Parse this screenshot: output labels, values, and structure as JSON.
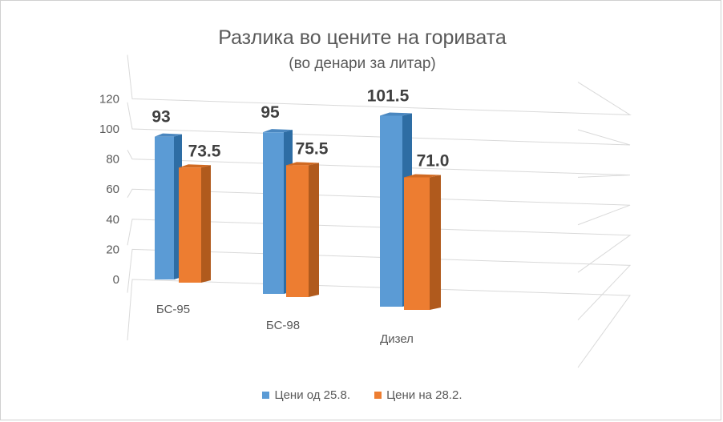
{
  "chart_data": {
    "type": "bar",
    "title": "Разлика во цените на горивата",
    "subtitle": "(во денари за литар)",
    "categories": [
      "БС-95",
      "БС-98",
      "Дизел"
    ],
    "series": [
      {
        "name": "Цени од 25.8.",
        "values": [
          93,
          95,
          101.5
        ],
        "data_labels": [
          "93",
          "95",
          "101.5"
        ],
        "color": "#5b9bd5"
      },
      {
        "name": "Цени на 28.2.",
        "values": [
          73.5,
          75.5,
          71.0
        ],
        "data_labels": [
          "73.5",
          "75.5",
          "71.0"
        ],
        "color": "#ed7d31"
      }
    ],
    "ylim": [
      0,
      120
    ],
    "yticks": [
      "0",
      "20",
      "40",
      "60",
      "80",
      "100",
      "120"
    ],
    "grid": true,
    "legend": "bottom",
    "style": "3d-perspective"
  },
  "colors": {
    "series1_side": "#2e6da4",
    "series1_top": "#4a87c0",
    "series2_side": "#b05a1d",
    "series2_top": "#d16a22",
    "grid": "#d9d9d9",
    "text": "#595959",
    "label": "#404040"
  }
}
